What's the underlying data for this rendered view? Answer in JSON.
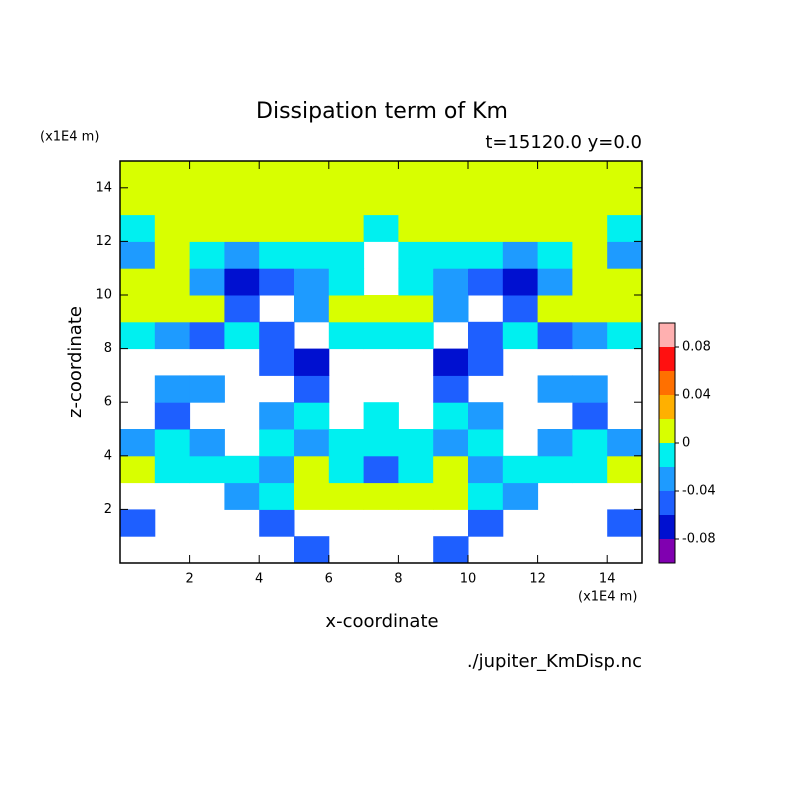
{
  "chart_data": {
    "type": "contour",
    "title": "Dissipation term of Km",
    "subtitle": "t=15120.0 y=0.0",
    "x_label": "x-coordinate",
    "y_label": "z-coordinate",
    "x_unit": "(x1E4 m)",
    "y_unit": "(x1E4 m)",
    "source": "./jupiter_KmDisp.nc",
    "xlim": [
      0,
      15
    ],
    "ylim": [
      0,
      15
    ],
    "xticks": [
      2,
      4,
      6,
      8,
      10,
      12,
      14
    ],
    "yticks": [
      2,
      4,
      6,
      8,
      10,
      12,
      14
    ],
    "x": [
      0.5,
      1.5,
      2.5,
      3.5,
      4.5,
      5.5,
      6.5,
      7.5,
      8.5,
      9.5,
      10.5,
      11.5,
      12.5,
      13.5,
      14.5
    ],
    "y": [
      0.5,
      1.5,
      2.5,
      3.5,
      4.5,
      5.5,
      6.5,
      7.5,
      8.5,
      9.5,
      10.5,
      11.5,
      12.5,
      13.5,
      14.5
    ],
    "z": [
      [
        null,
        null,
        null,
        null,
        null,
        -0.05,
        null,
        null,
        null,
        -0.05,
        null,
        null,
        null,
        null,
        null
      ],
      [
        -0.05,
        null,
        null,
        null,
        -0.05,
        null,
        null,
        null,
        null,
        null,
        -0.05,
        null,
        null,
        null,
        -0.05
      ],
      [
        null,
        null,
        null,
        -0.03,
        -0.01,
        0.01,
        0.01,
        0.01,
        0.01,
        0.01,
        -0.01,
        -0.03,
        null,
        null,
        null
      ],
      [
        0.01,
        -0.01,
        -0.01,
        -0.01,
        -0.03,
        0.01,
        -0.01,
        -0.05,
        -0.01,
        0.01,
        -0.03,
        -0.01,
        -0.01,
        -0.01,
        0.01
      ],
      [
        -0.03,
        -0.01,
        -0.03,
        null,
        -0.01,
        -0.03,
        -0.01,
        -0.01,
        -0.01,
        -0.03,
        -0.01,
        null,
        -0.03,
        -0.01,
        -0.03
      ],
      [
        null,
        -0.05,
        null,
        null,
        -0.03,
        -0.01,
        null,
        -0.01,
        null,
        -0.01,
        -0.03,
        null,
        null,
        -0.05,
        null
      ],
      [
        null,
        -0.03,
        -0.03,
        null,
        null,
        -0.05,
        null,
        null,
        null,
        -0.05,
        null,
        null,
        -0.03,
        -0.03,
        null
      ],
      [
        null,
        null,
        null,
        null,
        -0.05,
        -0.07,
        null,
        null,
        null,
        -0.07,
        -0.05,
        null,
        null,
        null,
        null
      ],
      [
        -0.01,
        -0.03,
        -0.05,
        -0.01,
        -0.05,
        null,
        -0.01,
        -0.01,
        -0.01,
        null,
        -0.05,
        -0.01,
        -0.05,
        -0.03,
        -0.01
      ],
      [
        0.01,
        0.01,
        0.01,
        -0.05,
        null,
        -0.03,
        0.01,
        0.01,
        0.01,
        -0.03,
        null,
        -0.05,
        0.01,
        0.01,
        0.01
      ],
      [
        0.01,
        0.01,
        -0.03,
        -0.07,
        -0.05,
        -0.03,
        -0.01,
        null,
        -0.01,
        -0.03,
        -0.05,
        -0.07,
        -0.03,
        0.01,
        0.01
      ],
      [
        -0.03,
        0.01,
        -0.01,
        -0.03,
        -0.01,
        -0.01,
        -0.01,
        null,
        -0.01,
        -0.01,
        -0.01,
        -0.03,
        -0.01,
        0.01,
        -0.03
      ],
      [
        -0.01,
        0.01,
        0.01,
        0.01,
        0.01,
        0.01,
        0.01,
        -0.01,
        0.01,
        0.01,
        0.01,
        0.01,
        0.01,
        0.01,
        -0.01
      ],
      [
        0.01,
        0.01,
        0.01,
        0.01,
        0.01,
        0.01,
        0.01,
        0.01,
        0.01,
        0.01,
        0.01,
        0.01,
        0.01,
        0.01,
        0.01
      ],
      [
        0.01,
        0.01,
        0.01,
        0.01,
        0.01,
        0.01,
        0.01,
        0.01,
        0.01,
        0.01,
        0.01,
        0.01,
        0.01,
        0.01,
        0.01
      ]
    ],
    "levels": [
      -0.1,
      -0.08,
      -0.06,
      -0.04,
      -0.02,
      0,
      0.02,
      0.04,
      0.06,
      0.08,
      0.1
    ],
    "colors": [
      "#8000b0",
      "#0010d0",
      "#1e5fff",
      "#1e9bff",
      "#00f0f0",
      "#d8ff00",
      "#ffb000",
      "#ff7000",
      "#ff1010",
      "#ffb0b0"
    ],
    "colorbar_ticks": [
      0.08,
      0.04,
      0,
      -0.04,
      -0.08
    ]
  }
}
